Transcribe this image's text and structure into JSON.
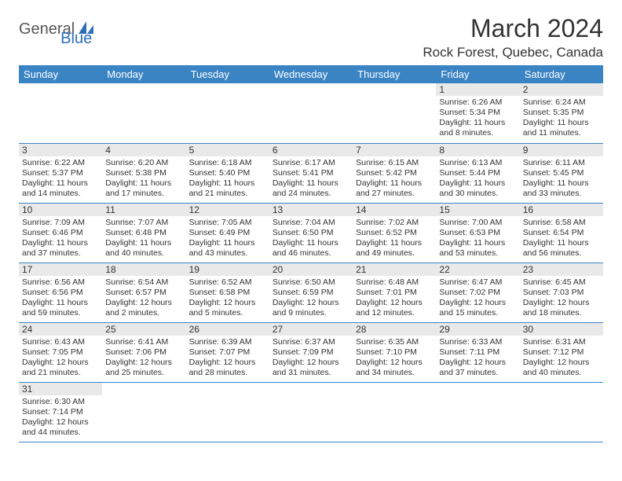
{
  "logo": {
    "part1": "General",
    "part2": "Blue"
  },
  "title": "March 2024",
  "location": "Rock Forest, Quebec, Canada",
  "colors": {
    "header_bg": "#3b84c4",
    "header_text": "#ffffff",
    "daynum_bg": "#e9e9e9",
    "border": "#3b84c4",
    "logo_accent": "#2d6fb8"
  },
  "day_headers": [
    "Sunday",
    "Monday",
    "Tuesday",
    "Wednesday",
    "Thursday",
    "Friday",
    "Saturday"
  ],
  "weeks": [
    [
      null,
      null,
      null,
      null,
      null,
      {
        "n": "1",
        "sr": "6:26 AM",
        "ss": "5:34 PM",
        "dl": "11 hours and 8 minutes."
      },
      {
        "n": "2",
        "sr": "6:24 AM",
        "ss": "5:35 PM",
        "dl": "11 hours and 11 minutes."
      }
    ],
    [
      {
        "n": "3",
        "sr": "6:22 AM",
        "ss": "5:37 PM",
        "dl": "11 hours and 14 minutes."
      },
      {
        "n": "4",
        "sr": "6:20 AM",
        "ss": "5:38 PM",
        "dl": "11 hours and 17 minutes."
      },
      {
        "n": "5",
        "sr": "6:18 AM",
        "ss": "5:40 PM",
        "dl": "11 hours and 21 minutes."
      },
      {
        "n": "6",
        "sr": "6:17 AM",
        "ss": "5:41 PM",
        "dl": "11 hours and 24 minutes."
      },
      {
        "n": "7",
        "sr": "6:15 AM",
        "ss": "5:42 PM",
        "dl": "11 hours and 27 minutes."
      },
      {
        "n": "8",
        "sr": "6:13 AM",
        "ss": "5:44 PM",
        "dl": "11 hours and 30 minutes."
      },
      {
        "n": "9",
        "sr": "6:11 AM",
        "ss": "5:45 PM",
        "dl": "11 hours and 33 minutes."
      }
    ],
    [
      {
        "n": "10",
        "sr": "7:09 AM",
        "ss": "6:46 PM",
        "dl": "11 hours and 37 minutes."
      },
      {
        "n": "11",
        "sr": "7:07 AM",
        "ss": "6:48 PM",
        "dl": "11 hours and 40 minutes."
      },
      {
        "n": "12",
        "sr": "7:05 AM",
        "ss": "6:49 PM",
        "dl": "11 hours and 43 minutes."
      },
      {
        "n": "13",
        "sr": "7:04 AM",
        "ss": "6:50 PM",
        "dl": "11 hours and 46 minutes."
      },
      {
        "n": "14",
        "sr": "7:02 AM",
        "ss": "6:52 PM",
        "dl": "11 hours and 49 minutes."
      },
      {
        "n": "15",
        "sr": "7:00 AM",
        "ss": "6:53 PM",
        "dl": "11 hours and 53 minutes."
      },
      {
        "n": "16",
        "sr": "6:58 AM",
        "ss": "6:54 PM",
        "dl": "11 hours and 56 minutes."
      }
    ],
    [
      {
        "n": "17",
        "sr": "6:56 AM",
        "ss": "6:56 PM",
        "dl": "11 hours and 59 minutes."
      },
      {
        "n": "18",
        "sr": "6:54 AM",
        "ss": "6:57 PM",
        "dl": "12 hours and 2 minutes."
      },
      {
        "n": "19",
        "sr": "6:52 AM",
        "ss": "6:58 PM",
        "dl": "12 hours and 5 minutes."
      },
      {
        "n": "20",
        "sr": "6:50 AM",
        "ss": "6:59 PM",
        "dl": "12 hours and 9 minutes."
      },
      {
        "n": "21",
        "sr": "6:48 AM",
        "ss": "7:01 PM",
        "dl": "12 hours and 12 minutes."
      },
      {
        "n": "22",
        "sr": "6:47 AM",
        "ss": "7:02 PM",
        "dl": "12 hours and 15 minutes."
      },
      {
        "n": "23",
        "sr": "6:45 AM",
        "ss": "7:03 PM",
        "dl": "12 hours and 18 minutes."
      }
    ],
    [
      {
        "n": "24",
        "sr": "6:43 AM",
        "ss": "7:05 PM",
        "dl": "12 hours and 21 minutes."
      },
      {
        "n": "25",
        "sr": "6:41 AM",
        "ss": "7:06 PM",
        "dl": "12 hours and 25 minutes."
      },
      {
        "n": "26",
        "sr": "6:39 AM",
        "ss": "7:07 PM",
        "dl": "12 hours and 28 minutes."
      },
      {
        "n": "27",
        "sr": "6:37 AM",
        "ss": "7:09 PM",
        "dl": "12 hours and 31 minutes."
      },
      {
        "n": "28",
        "sr": "6:35 AM",
        "ss": "7:10 PM",
        "dl": "12 hours and 34 minutes."
      },
      {
        "n": "29",
        "sr": "6:33 AM",
        "ss": "7:11 PM",
        "dl": "12 hours and 37 minutes."
      },
      {
        "n": "30",
        "sr": "6:31 AM",
        "ss": "7:12 PM",
        "dl": "12 hours and 40 minutes."
      }
    ],
    [
      {
        "n": "31",
        "sr": "6:30 AM",
        "ss": "7:14 PM",
        "dl": "12 hours and 44 minutes."
      },
      null,
      null,
      null,
      null,
      null,
      null
    ]
  ],
  "labels": {
    "sunrise": "Sunrise:",
    "sunset": "Sunset:",
    "daylight": "Daylight:"
  }
}
